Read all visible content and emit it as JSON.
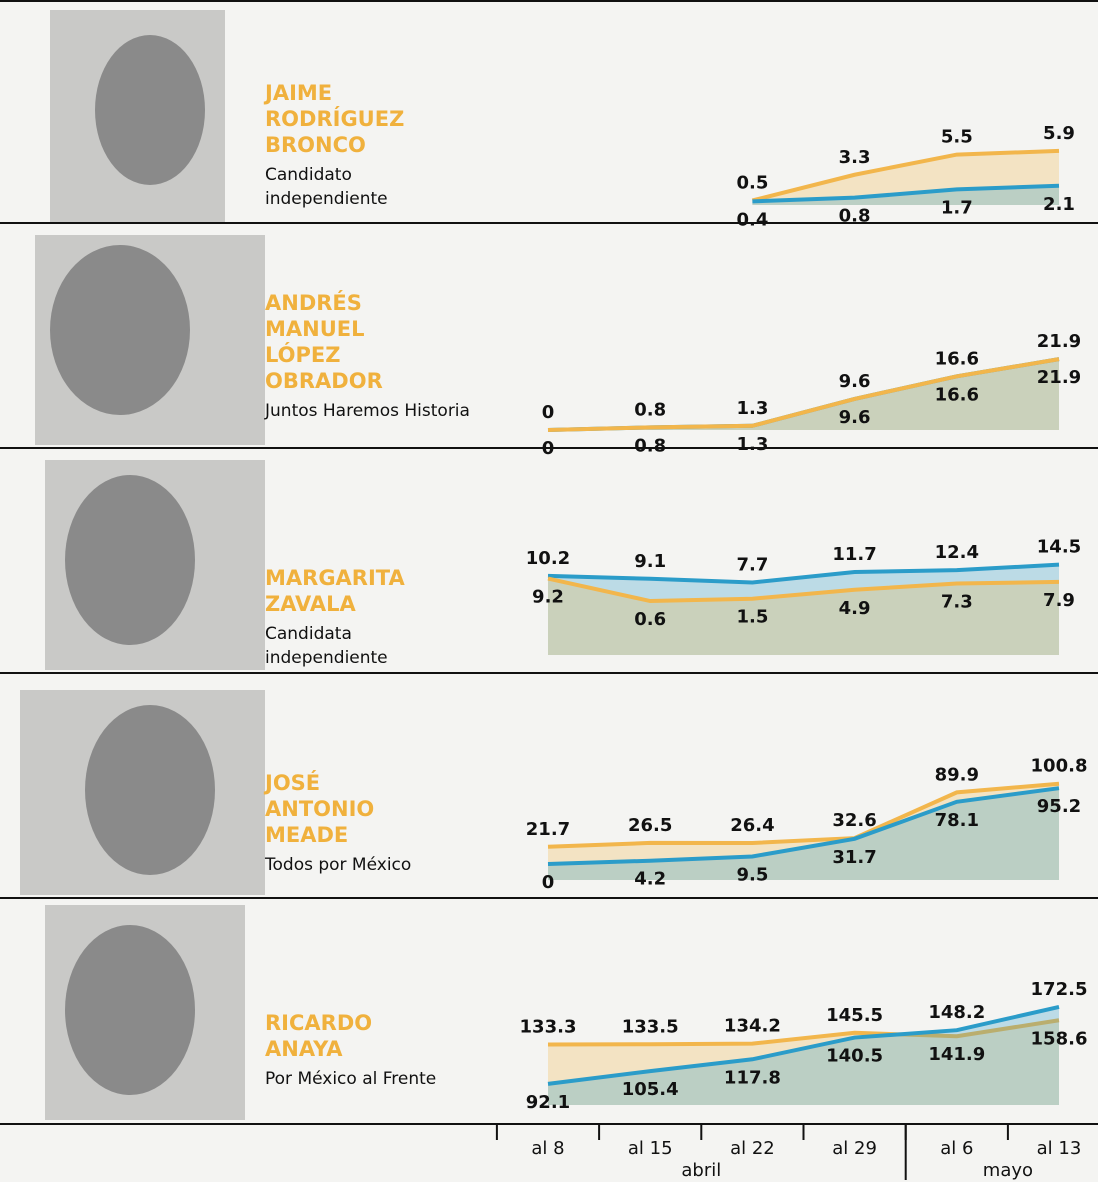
{
  "chart_data": {
    "type": "small_multiples",
    "categories": [
      "al 8",
      "al 15",
      "al 22",
      "al 29",
      "al 6",
      "al 13"
    ],
    "groups": [
      {
        "label": "abril",
        "span": 4
      },
      {
        "label": "mayo",
        "span": 2
      }
    ],
    "panels": [
      {
        "type": "area",
        "title": [
          "JAIME",
          "RODRÍGUEZ",
          "BRONCO"
        ],
        "subtitle": [
          "Candidato",
          "independiente"
        ],
        "ylim": [
          0,
          12
        ],
        "series": [
          {
            "color": "#f2b64c",
            "values": [
              null,
              null,
              0.5,
              3.3,
              5.5,
              5.9
            ]
          },
          {
            "color": "#2b9cc9",
            "values": [
              null,
              null,
              0.4,
              0.8,
              1.7,
              2.1
            ]
          }
        ]
      },
      {
        "type": "area",
        "title": [
          "ANDRÉS",
          "MANUEL",
          "LÓPEZ",
          "OBRADOR"
        ],
        "subtitle": [
          "Juntos Haremos Historia"
        ],
        "ylim": [
          0,
          34
        ],
        "series": [
          {
            "color": "#2b9cc9",
            "values": [
              0,
              0.8,
              1.3,
              9.6,
              16.6,
              21.9
            ]
          },
          {
            "color": "#f2b64c",
            "values": [
              0,
              0.8,
              1.3,
              9.6,
              16.6,
              21.9
            ]
          }
        ]
      },
      {
        "type": "area",
        "title": [
          "MARGARITA",
          "ZAVALA"
        ],
        "subtitle": [
          "Candidata",
          "independiente"
        ],
        "ylim": [
          -20,
          22
        ],
        "series": [
          {
            "color": "#2b9cc9",
            "values": [
              10.2,
              9.1,
              7.7,
              11.7,
              12.4,
              14.5
            ]
          },
          {
            "color": "#f2b64c",
            "values": [
              9.2,
              0.6,
              1.5,
              4.9,
              7.3,
              7.9
            ]
          }
        ]
      },
      {
        "type": "area",
        "title": [
          "JOSÉ",
          "ANTONIO",
          "MEADE"
        ],
        "subtitle": [
          "Todos por México"
        ],
        "ylim": [
          -20,
          118
        ],
        "series": [
          {
            "color": "#f2b64c",
            "values": [
              21.7,
              26.5,
              26.4,
              32.6,
              89.9,
              100.8
            ]
          },
          {
            "color": "#2b9cc9",
            "values": [
              0,
              4.2,
              9.5,
              31.7,
              78.1,
              95.2
            ]
          }
        ]
      },
      {
        "type": "area",
        "title": [
          "RICARDO",
          "ANAYA"
        ],
        "subtitle": [
          "Por México al Frente"
        ],
        "ylim": [
          70,
          185
        ],
        "series": [
          {
            "color": "#f2b64c",
            "values": [
              133.3,
              133.5,
              134.2,
              145.5,
              141.9,
              158.6
            ]
          },
          {
            "color": "#2b9cc9",
            "values": [
              92.1,
              105.4,
              117.8,
              140.5,
              148.2,
              172.5
            ]
          }
        ]
      }
    ]
  }
}
